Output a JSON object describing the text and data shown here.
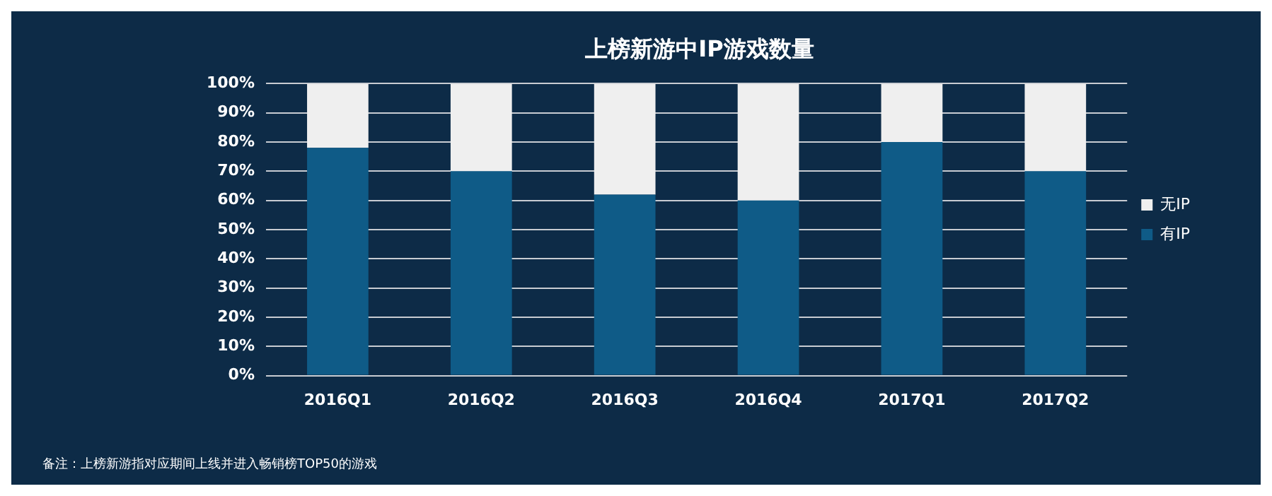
{
  "chart_data": {
    "type": "bar",
    "title": "上榜新游中IP游戏数量",
    "stacked": true,
    "categories": [
      "2016Q1",
      "2016Q2",
      "2016Q3",
      "2016Q4",
      "2017Q1",
      "2017Q2"
    ],
    "series": [
      {
        "name": "有IP",
        "color": "#0f5b87",
        "values": [
          78,
          70,
          62,
          60,
          80,
          70
        ]
      },
      {
        "name": "无IP",
        "color": "#efefef",
        "values": [
          22,
          30,
          38,
          40,
          20,
          30
        ]
      }
    ],
    "ylim": [
      0,
      100
    ],
    "yticks": [
      {
        "value": 0,
        "label": "0%"
      },
      {
        "value": 10,
        "label": "10%"
      },
      {
        "value": 20,
        "label": "20%"
      },
      {
        "value": 30,
        "label": "30%"
      },
      {
        "value": 40,
        "label": "40%"
      },
      {
        "value": 50,
        "label": "50%"
      },
      {
        "value": 60,
        "label": "60%"
      },
      {
        "value": 70,
        "label": "70%"
      },
      {
        "value": 80,
        "label": "80%"
      },
      {
        "value": 90,
        "label": "90%"
      },
      {
        "value": 100,
        "label": "100%"
      }
    ],
    "grid": "y",
    "legend": "right",
    "annotations": [
      "备注：上榜新游指对应期间上线并进入畅销榜TOP50的游戏"
    ]
  }
}
